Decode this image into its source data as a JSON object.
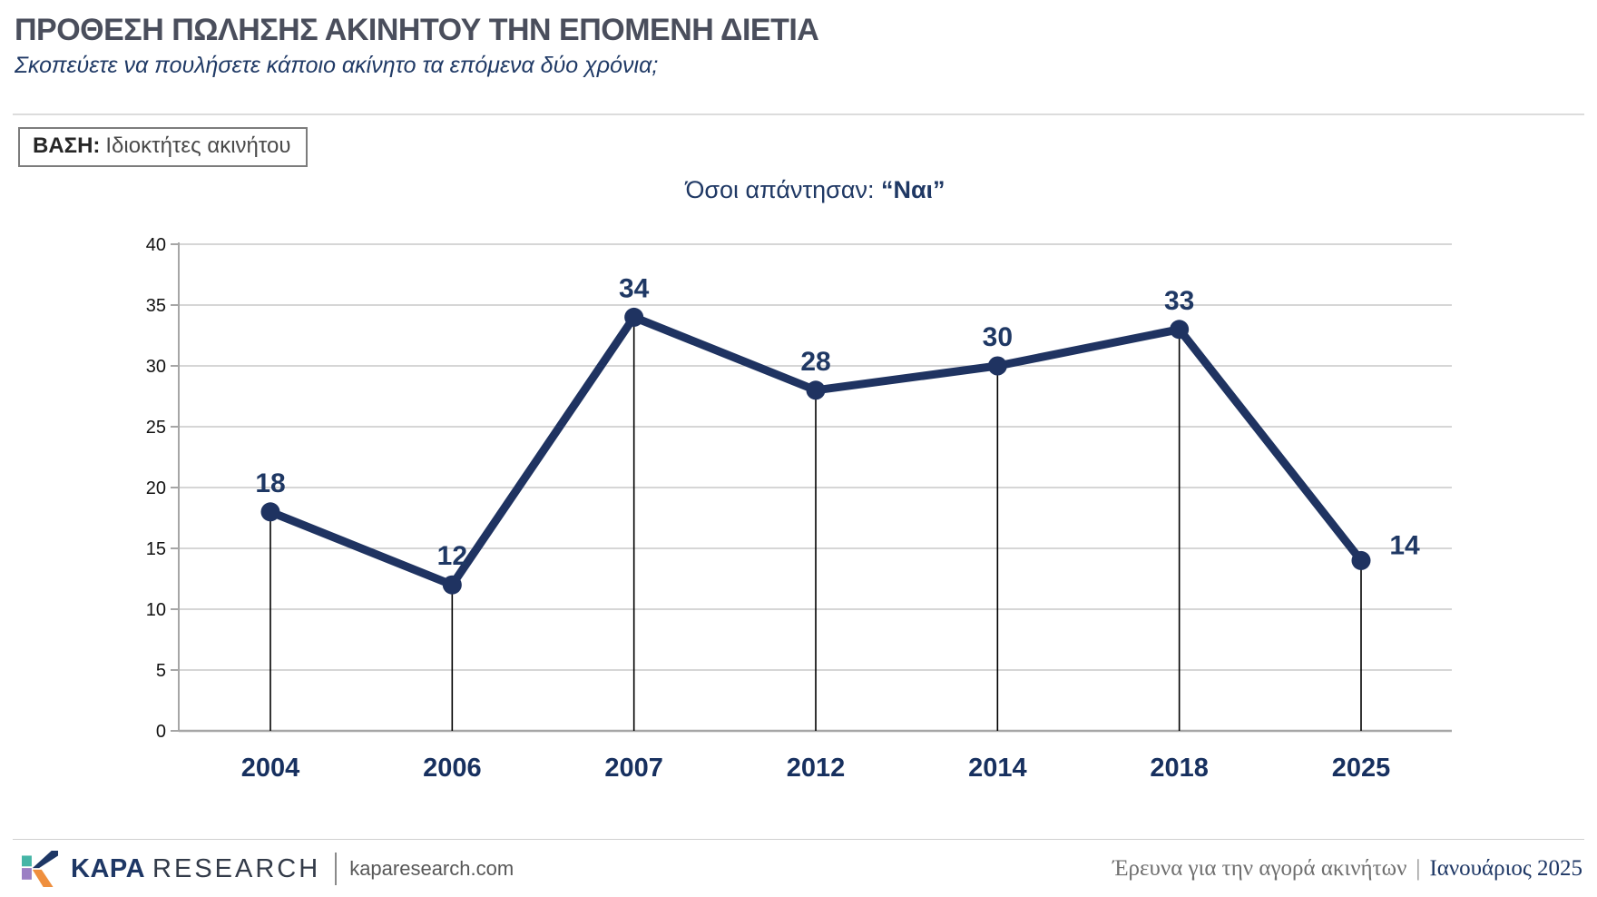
{
  "header": {
    "title": "ΠΡΟΘΕΣΗ ΠΩΛΗΣΗΣ ΑΚΙΝΗΤΟΥ ΤΗΝ ΕΠΟΜΕΝΗ ΔΙΕΤΙΑ",
    "subtitle": "Σκοπεύετε να πουλήσετε κάποιο ακίνητο τα επόμενα δύο χρόνια;",
    "base_label": "ΒΑΣΗ:",
    "base_value": "Ιδιοκτήτες ακινήτου"
  },
  "chart_data": {
    "type": "line",
    "title_prefix": "Όσοι απάντησαν: ",
    "title_bold": "“Ναι”",
    "categories": [
      "2004",
      "2006",
      "2007",
      "2012",
      "2014",
      "2018",
      "2025"
    ],
    "values": [
      18,
      12,
      34,
      28,
      30,
      33,
      14
    ],
    "ylim": [
      0,
      40
    ],
    "ytick_step": 5,
    "grid": true,
    "legend": "none",
    "colors": {
      "line": "#1F3361",
      "marker": "#1F3361",
      "value_label": "#1F3864",
      "x_label": "#17305F",
      "y_label": "#111111",
      "gridline": "#C9C9C9",
      "axis": "#A6A6A6",
      "stem": "#000000"
    }
  },
  "footer": {
    "brand_bold": "KAPA",
    "brand_rest": "RESEARCH",
    "website": "kaparesearch.com",
    "survey_name": "Έρευνα για την αγορά ακινήτων",
    "separator": "|",
    "date": "Ιανουάριος 2025"
  }
}
